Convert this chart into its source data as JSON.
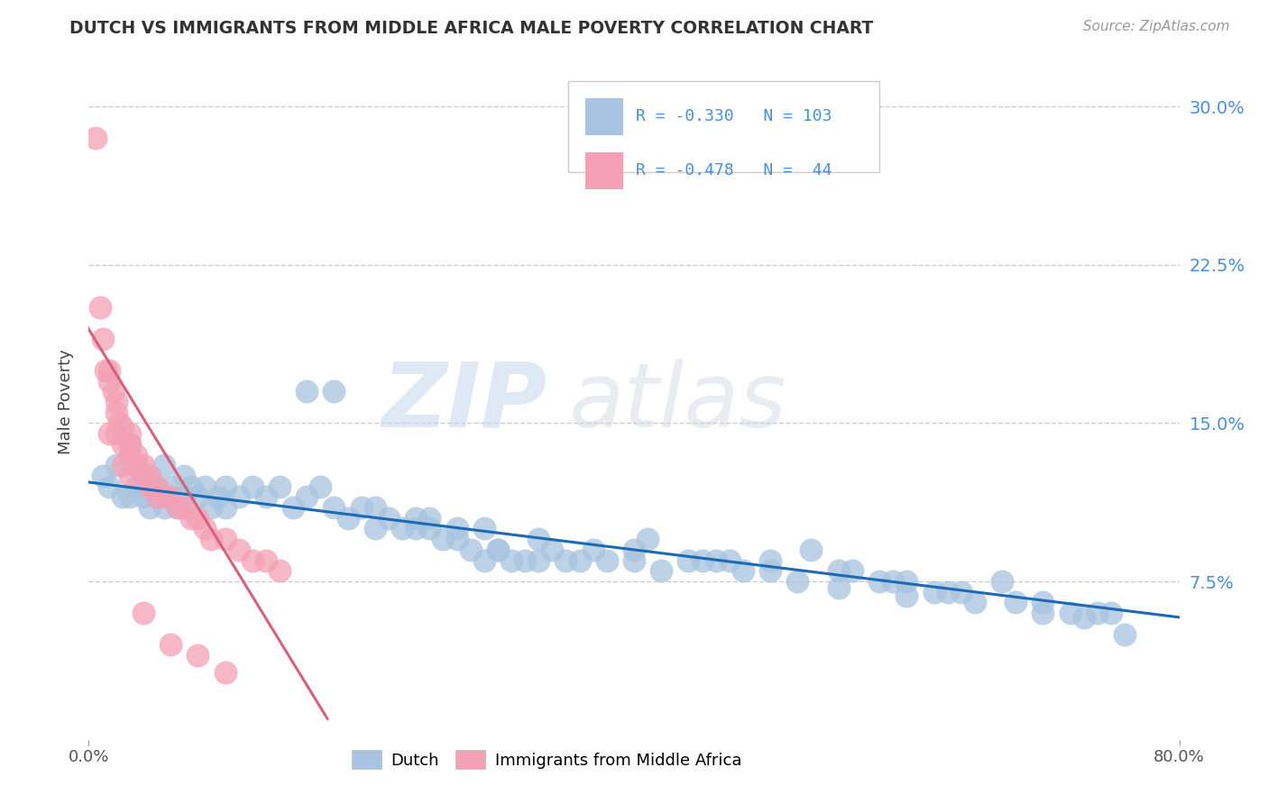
{
  "title": "DUTCH VS IMMIGRANTS FROM MIDDLE AFRICA MALE POVERTY CORRELATION CHART",
  "source": "Source: ZipAtlas.com",
  "ylabel": "Male Poverty",
  "yticks": [
    "7.5%",
    "15.0%",
    "22.5%",
    "30.0%"
  ],
  "ytick_vals": [
    0.075,
    0.15,
    0.225,
    0.3
  ],
  "xlim": [
    0.0,
    0.8
  ],
  "ylim": [
    0.0,
    0.32
  ],
  "legend_r1": "R = -0.330",
  "legend_n1": "N = 103",
  "legend_r2": "R = -0.478",
  "legend_n2": "N =  44",
  "legend_label1": "Dutch",
  "legend_label2": "Immigrants from Middle Africa",
  "dutch_color": "#a8c4e0",
  "pink_color": "#f4a0b5",
  "blue_line_color": "#1a6ab5",
  "pink_line_color": "#d9607a",
  "watermark_zip": "ZIP",
  "watermark_atlas": "atlas",
  "background_color": "#ffffff",
  "dutch_line_x": [
    0.0,
    0.8
  ],
  "dutch_line_y": [
    0.122,
    0.058
  ],
  "pink_line_x": [
    -0.01,
    0.175
  ],
  "pink_line_y": [
    0.205,
    0.01
  ]
}
